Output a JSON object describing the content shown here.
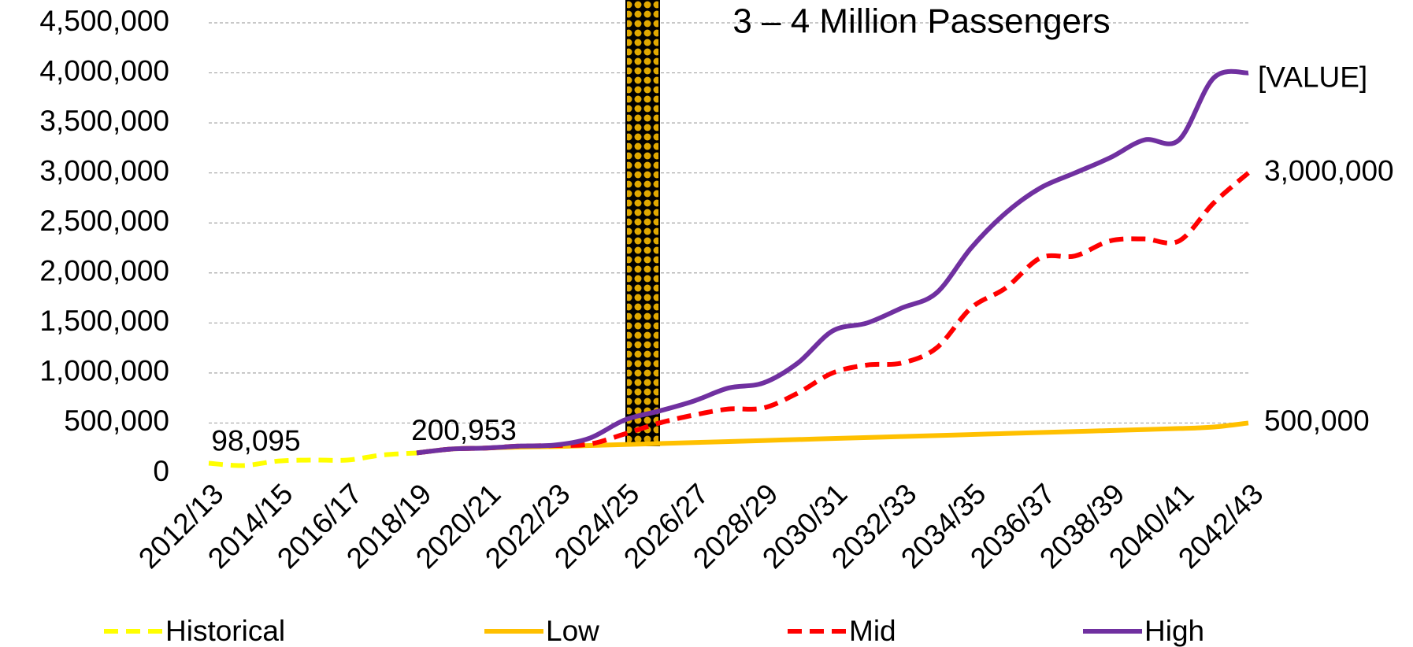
{
  "chart_data": {
    "type": "line",
    "annotations": [
      {
        "text": "3 – 4 Million Passengers",
        "color": "#0070c0"
      },
      {
        "text": "[VALUE]"
      }
    ],
    "categories": [
      "2012/13",
      null,
      "2014/15",
      null,
      "2016/17",
      null,
      "2018/19",
      null,
      "2020/21",
      null,
      "2022/23",
      null,
      "2024/25",
      null,
      "2026/27",
      null,
      "2028/29",
      null,
      "2030/31",
      null,
      "2032/33",
      null,
      "2034/35",
      null,
      "2036/37",
      null,
      "2038/39",
      null,
      "2040/41",
      null,
      "2042/43"
    ],
    "series": [
      {
        "name": "Historical",
        "color": "#ffff00",
        "dashed": true,
        "values": [
          98095,
          75000,
          120000,
          130000,
          130000,
          180000,
          200953,
          null,
          null,
          null,
          null,
          null,
          null,
          null,
          null,
          null,
          null,
          null,
          null,
          null,
          null,
          null,
          null,
          null,
          null,
          null,
          null,
          null,
          null,
          null,
          null
        ],
        "value_labels": [
          "98,095",
          null,
          null,
          null,
          null,
          null,
          "200,953",
          null,
          null,
          null,
          null,
          null,
          null,
          null,
          null,
          null,
          null,
          null,
          null,
          null,
          null,
          null,
          null,
          null,
          null,
          null,
          null,
          null,
          null,
          null,
          null
        ]
      },
      {
        "name": "Low",
        "color": "#ffc000",
        "dashed": false,
        "values": [
          null,
          null,
          null,
          null,
          null,
          null,
          200953,
          240000,
          250000,
          260000,
          265000,
          275000,
          285000,
          295000,
          305000,
          315000,
          325000,
          335000,
          345000,
          355000,
          365000,
          375000,
          385000,
          395000,
          405000,
          415000,
          425000,
          435000,
          445000,
          460000,
          500000
        ],
        "value_labels": [
          null,
          null,
          null,
          null,
          null,
          null,
          null,
          null,
          null,
          null,
          null,
          null,
          null,
          null,
          null,
          null,
          null,
          null,
          null,
          null,
          null,
          null,
          null,
          null,
          null,
          null,
          null,
          null,
          null,
          null,
          "500,000"
        ]
      },
      {
        "name": "Mid",
        "color": "#ff0000",
        "dashed": true,
        "values": [
          null,
          null,
          null,
          null,
          null,
          null,
          200953,
          240000,
          250000,
          270000,
          275000,
          290000,
          390000,
          500000,
          580000,
          640000,
          650000,
          800000,
          1000000,
          1080000,
          1100000,
          1250000,
          1650000,
          1850000,
          2150000,
          2170000,
          2320000,
          2340000,
          2320000,
          2700000,
          3000000
        ],
        "value_labels": [
          null,
          null,
          null,
          null,
          null,
          null,
          null,
          null,
          null,
          null,
          null,
          null,
          null,
          null,
          null,
          null,
          null,
          null,
          null,
          null,
          null,
          null,
          null,
          null,
          null,
          null,
          null,
          null,
          null,
          null,
          "3,000,000"
        ]
      },
      {
        "name": "High",
        "color": "#7030a0",
        "dashed": false,
        "values": [
          null,
          null,
          null,
          null,
          null,
          null,
          200953,
          240000,
          250000,
          270000,
          280000,
          350000,
          530000,
          620000,
          720000,
          850000,
          900000,
          1100000,
          1420000,
          1500000,
          1650000,
          1800000,
          2250000,
          2600000,
          2850000,
          3000000,
          3150000,
          3330000,
          3330000,
          3950000,
          4000000
        ]
      }
    ],
    "ylim": [
      0,
      4500000
    ],
    "yticks": [
      0,
      {
        "value": 500000,
        "label": "500,000"
      },
      {
        "value": 1000000,
        "label": "1,000,000"
      },
      {
        "value": 1500000,
        "label": "1,500,000"
      },
      {
        "value": 2000000,
        "label": "2,000,000"
      },
      {
        "value": 2500000,
        "label": "2,500,000"
      },
      {
        "value": 3000000,
        "label": "3,000,000"
      },
      {
        "value": 3500000,
        "label": "3,500,000"
      },
      {
        "value": 4000000,
        "label": "4,000,000"
      },
      {
        "value": 4500000,
        "label": "4,500,000"
      }
    ],
    "grid": true,
    "legend": "bottom"
  }
}
